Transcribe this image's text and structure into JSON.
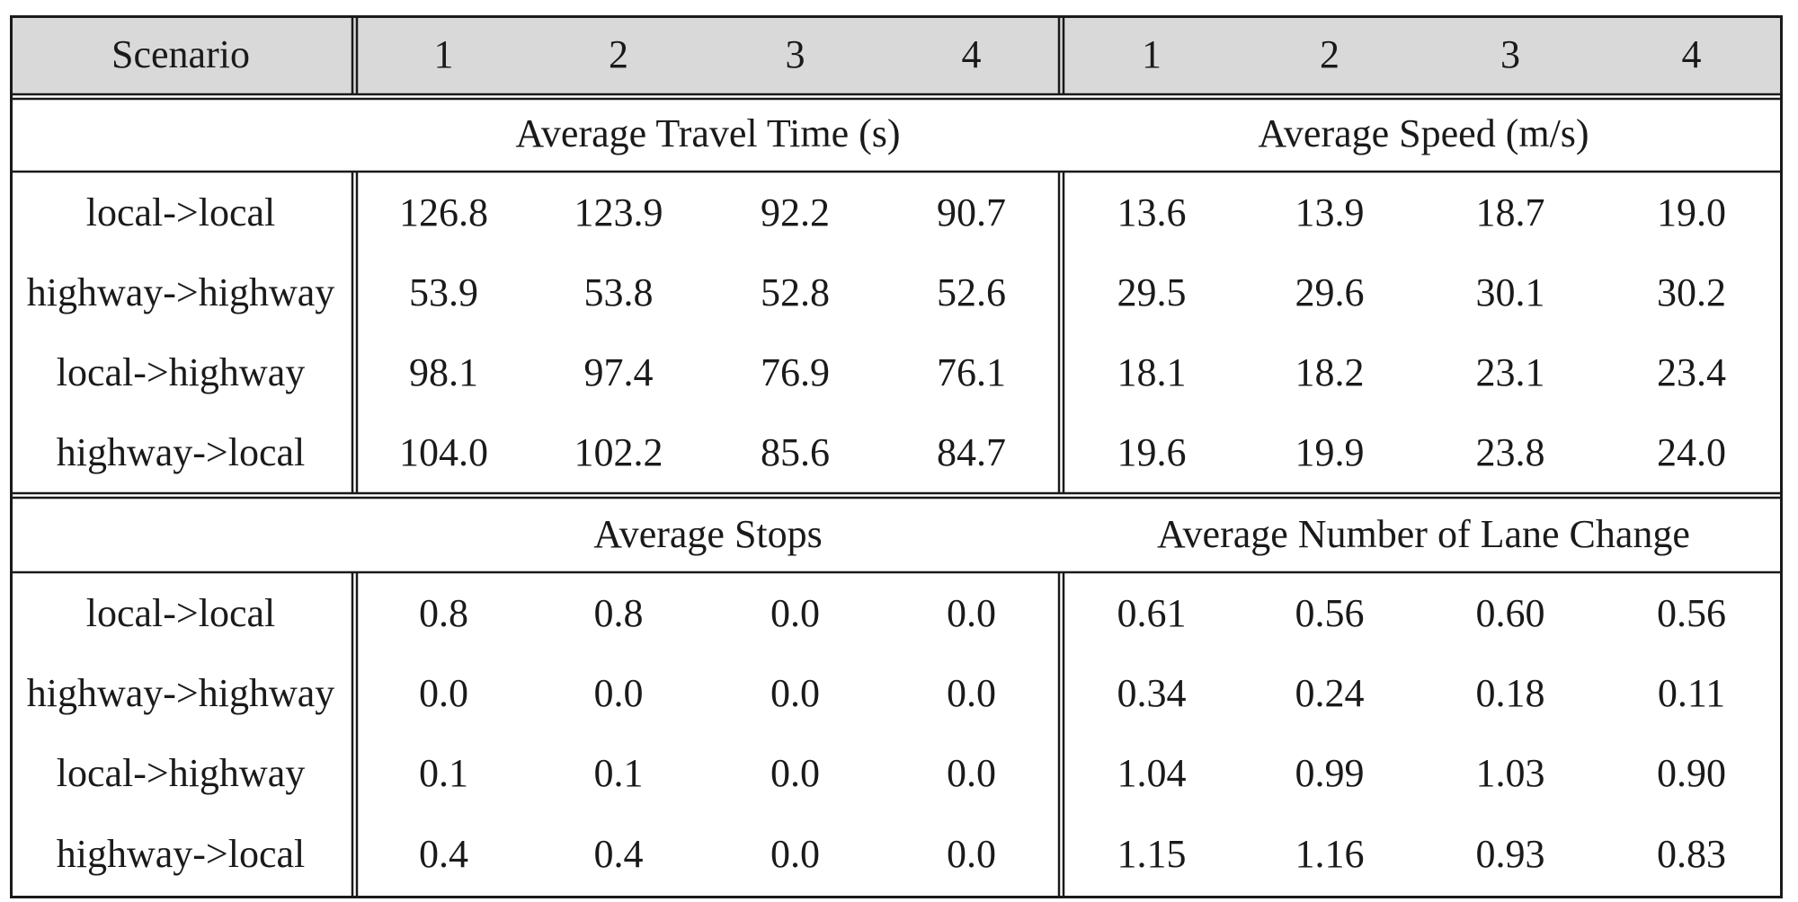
{
  "header": {
    "label": "Scenario",
    "cols": [
      "1",
      "2",
      "3",
      "4",
      "1",
      "2",
      "3",
      "4"
    ]
  },
  "sections": [
    {
      "left_title": "Average Travel Time (s)",
      "right_title": "Average Speed (m/s)",
      "rows": [
        {
          "label": "local->local",
          "left": [
            "126.8",
            "123.9",
            "92.2",
            "90.7"
          ],
          "right": [
            "13.6",
            "13.9",
            "18.7",
            "19.0"
          ]
        },
        {
          "label": "highway->highway",
          "left": [
            "53.9",
            "53.8",
            "52.8",
            "52.6"
          ],
          "right": [
            "29.5",
            "29.6",
            "30.1",
            "30.2"
          ]
        },
        {
          "label": "local->highway",
          "left": [
            "98.1",
            "97.4",
            "76.9",
            "76.1"
          ],
          "right": [
            "18.1",
            "18.2",
            "23.1",
            "23.4"
          ]
        },
        {
          "label": "highway->local",
          "left": [
            "104.0",
            "102.2",
            "85.6",
            "84.7"
          ],
          "right": [
            "19.6",
            "19.9",
            "23.8",
            "24.0"
          ]
        }
      ]
    },
    {
      "left_title": "Average Stops",
      "right_title": "Average Number of Lane Change",
      "rows": [
        {
          "label": "local->local",
          "left": [
            "0.8",
            "0.8",
            "0.0",
            "0.0"
          ],
          "right": [
            "0.61",
            "0.56",
            "0.60",
            "0.56"
          ]
        },
        {
          "label": "highway->highway",
          "left": [
            "0.0",
            "0.0",
            "0.0",
            "0.0"
          ],
          "right": [
            "0.34",
            "0.24",
            "0.18",
            "0.11"
          ]
        },
        {
          "label": "local->highway",
          "left": [
            "0.1",
            "0.1",
            "0.0",
            "0.0"
          ],
          "right": [
            "1.04",
            "0.99",
            "1.03",
            "0.90"
          ]
        },
        {
          "label": "highway->local",
          "left": [
            "0.4",
            "0.4",
            "0.0",
            "0.0"
          ],
          "right": [
            "1.15",
            "1.16",
            "0.93",
            "0.83"
          ]
        }
      ]
    }
  ],
  "colors": {
    "header_bg": "#d9d9d9",
    "border": "#1a1a1a",
    "text": "#1a1a1a"
  }
}
